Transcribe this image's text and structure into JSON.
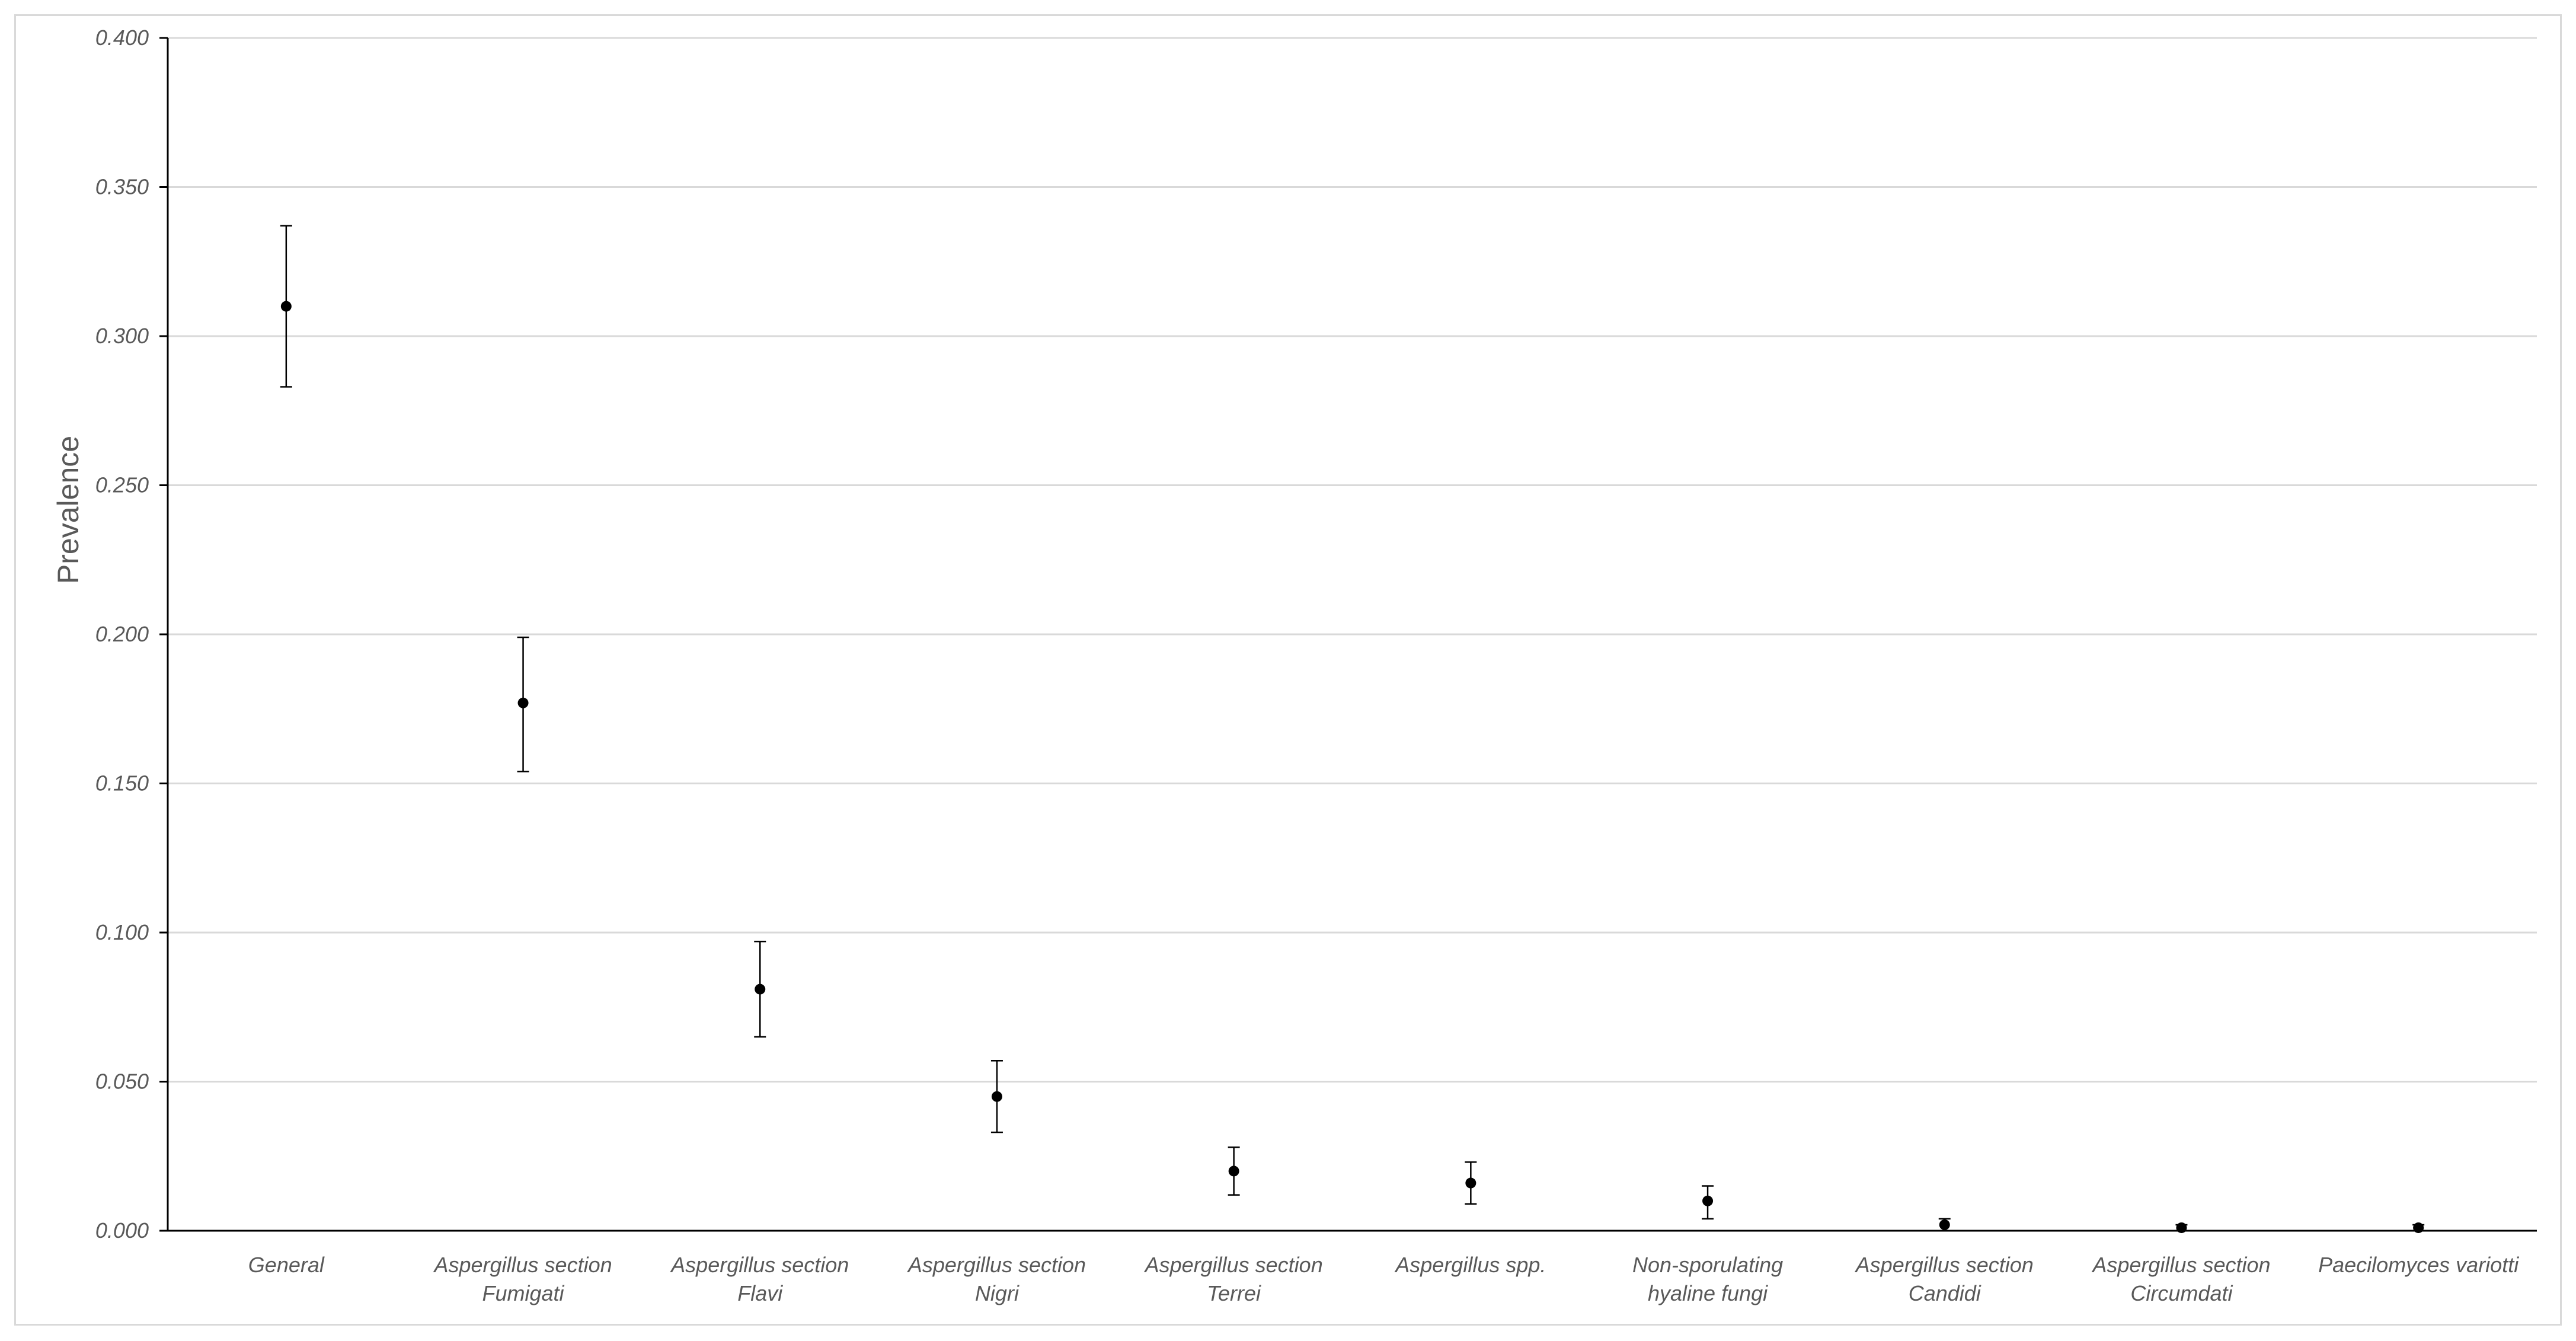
{
  "chart_data": {
    "type": "scatter",
    "ylabel": "Prevalence",
    "xlabel": "",
    "ylim": [
      0,
      0.4
    ],
    "yticks": [
      "0.000",
      "0.050",
      "0.100",
      "0.150",
      "0.200",
      "0.250",
      "0.300",
      "0.350",
      "0.400"
    ],
    "grid": "horizontal",
    "error_bars": true,
    "categories": [
      [
        "General"
      ],
      [
        "Aspergillus section",
        "Fumigati"
      ],
      [
        "Aspergillus section",
        "Flavi"
      ],
      [
        "Aspergillus section",
        "Nigri"
      ],
      [
        "Aspergillus section",
        "Terrei"
      ],
      [
        "Aspergillus spp."
      ],
      [
        "Non-sporulating",
        "hyaline fungi"
      ],
      [
        "Aspergillus section",
        "Candidi"
      ],
      [
        "Aspergillus section",
        "Circumdati"
      ],
      [
        "Paecilomyces variotti"
      ]
    ],
    "values": [
      0.31,
      0.177,
      0.081,
      0.045,
      0.02,
      0.016,
      0.01,
      0.002,
      0.001,
      0.001
    ],
    "lower": [
      0.283,
      0.154,
      0.065,
      0.033,
      0.012,
      0.009,
      0.004,
      0.0,
      0.0,
      0.0
    ],
    "upper": [
      0.337,
      0.199,
      0.097,
      0.057,
      0.028,
      0.023,
      0.015,
      0.004,
      0.002,
      0.002
    ],
    "colors": {
      "marker": "#000000",
      "grid": "#d9d9d9",
      "axis": "#000000",
      "text": "#595959"
    }
  }
}
